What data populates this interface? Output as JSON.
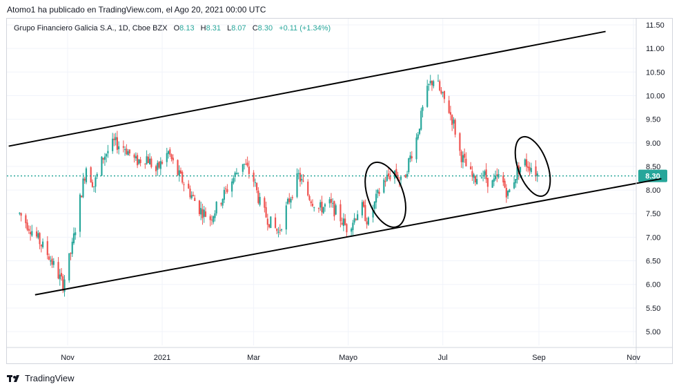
{
  "publish_line": "Atomo1 ha publicado en TradingView.com, el Ago 20, 2021 00:00 UTC",
  "legend": {
    "symbol": "Grupo Financiero Galicia S.A., 1D, Cboe BZX",
    "open_key": "O",
    "open": "8.13",
    "high_key": "H",
    "high": "8.31",
    "low_key": "L",
    "low": "8.07",
    "close_key": "C",
    "close": "8.30",
    "change": "+0.11 (+1.34%)"
  },
  "brand": "TradingView",
  "colors": {
    "up": "#26a69a",
    "down": "#ef5350",
    "line": "#000000",
    "price_line": "#26a69a",
    "grid": "#f0f3fa"
  },
  "chart_data": {
    "type": "candlestick",
    "title": "Grupo Financiero Galicia S.A., 1D, Cboe BZX",
    "x_ticks": [
      "Nov",
      "2021",
      "Mar",
      "Mayo",
      "Jul",
      "Sep",
      "Nov"
    ],
    "y_ticks": [
      "5.00",
      "5.50",
      "6.00",
      "6.50",
      "7.00",
      "7.50",
      "8.00",
      "8.50",
      "9.00",
      "9.50",
      "10.00",
      "10.50",
      "11.00",
      "11.50"
    ],
    "ylim": [
      4.7,
      11.7
    ],
    "last_price": 8.3,
    "last_price_label": "8.30",
    "grid": true,
    "price_path": [
      [
        "2020-10-01",
        7.5
      ],
      [
        "2020-10-10",
        7.1
      ],
      [
        "2020-10-20",
        6.6
      ],
      [
        "2020-10-29",
        6.0
      ],
      [
        "2020-11-04",
        6.8
      ],
      [
        "2020-11-09",
        7.8
      ],
      [
        "2020-11-13",
        8.5
      ],
      [
        "2020-11-18",
        8.1
      ],
      [
        "2020-11-24",
        8.7
      ],
      [
        "2020-12-01",
        9.0
      ],
      [
        "2020-12-08",
        8.9
      ],
      [
        "2020-12-15",
        8.6
      ],
      [
        "2020-12-22",
        8.7
      ],
      [
        "2020-12-28",
        8.4
      ],
      [
        "2021-01-05",
        8.8
      ],
      [
        "2021-01-10",
        8.4
      ],
      [
        "2021-01-18",
        8.0
      ],
      [
        "2021-01-25",
        7.6
      ],
      [
        "2021-02-01",
        7.4
      ],
      [
        "2021-02-08",
        7.8
      ],
      [
        "2021-02-15",
        8.2
      ],
      [
        "2021-02-22",
        8.6
      ],
      [
        "2021-03-01",
        8.2
      ],
      [
        "2021-03-06",
        7.6
      ],
      [
        "2021-03-12",
        7.3
      ],
      [
        "2021-03-17",
        7.1
      ],
      [
        "2021-03-24",
        7.8
      ],
      [
        "2021-03-30",
        8.3
      ],
      [
        "2021-04-05",
        7.9
      ],
      [
        "2021-04-12",
        7.6
      ],
      [
        "2021-04-19",
        7.7
      ],
      [
        "2021-04-24",
        7.5
      ],
      [
        "2021-04-30",
        7.2
      ],
      [
        "2021-05-05",
        7.4
      ],
      [
        "2021-05-09",
        7.7
      ],
      [
        "2021-05-14",
        7.3
      ],
      [
        "2021-05-19",
        7.8
      ],
      [
        "2021-05-24",
        8.2
      ],
      [
        "2021-05-31",
        8.4
      ],
      [
        "2021-06-05",
        8.1
      ],
      [
        "2021-06-09",
        8.6
      ],
      [
        "2021-06-14",
        9.1
      ],
      [
        "2021-06-18",
        9.7
      ],
      [
        "2021-06-22",
        10.2
      ],
      [
        "2021-06-26",
        10.4
      ],
      [
        "2021-06-30",
        10.0
      ],
      [
        "2021-07-04",
        9.8
      ],
      [
        "2021-07-08",
        9.4
      ],
      [
        "2021-07-12",
        8.8
      ],
      [
        "2021-07-16",
        8.5
      ],
      [
        "2021-07-21",
        8.2
      ],
      [
        "2021-07-26",
        8.4
      ],
      [
        "2021-08-01",
        8.1
      ],
      [
        "2021-08-07",
        8.3
      ],
      [
        "2021-08-12",
        7.9
      ],
      [
        "2021-08-18",
        8.4
      ],
      [
        "2021-08-22",
        8.6
      ],
      [
        "2021-08-27",
        8.5
      ],
      [
        "2021-09-01",
        8.3
      ]
    ],
    "trend_lines": [
      {
        "name": "upper-channel-line",
        "from": [
          "2020-09-24",
          8.93
        ],
        "to": [
          "2021-10-14",
          11.36
        ]
      },
      {
        "name": "lower-channel-line",
        "from": [
          "2020-10-11",
          5.78
        ],
        "to": [
          "2021-11-19",
          8.24
        ]
      }
    ],
    "ellipses": [
      {
        "name": "ellipse-mayo",
        "center": [
          "2021-05-25",
          7.9
        ],
        "rx_days": 6,
        "ry_price": 0.72,
        "tilt_deg": -20
      },
      {
        "name": "ellipse-agosto",
        "center": [
          "2021-08-28",
          8.5
        ],
        "rx_days": 5,
        "ry_price": 0.66,
        "tilt_deg": -20
      }
    ]
  }
}
